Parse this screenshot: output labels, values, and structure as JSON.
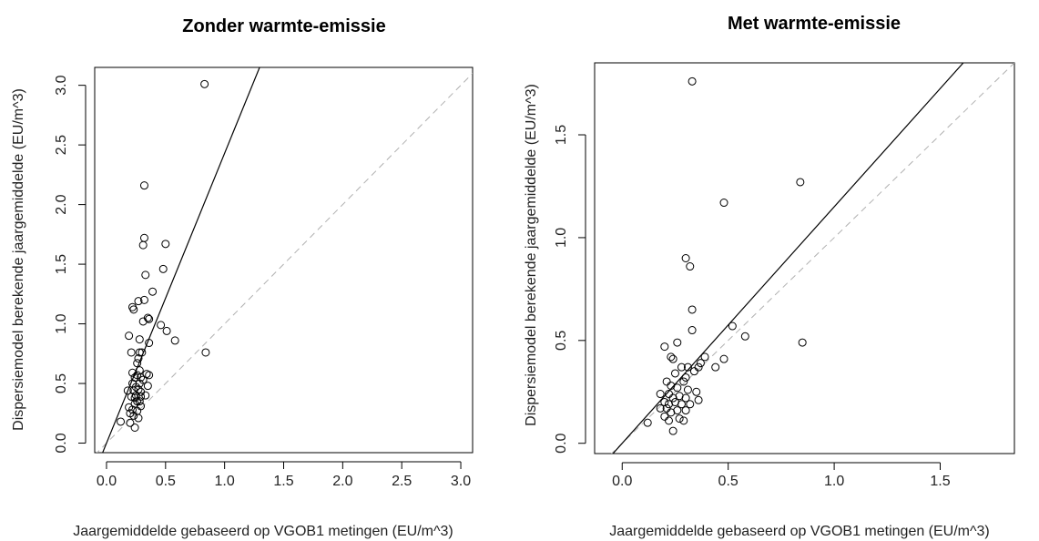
{
  "chart_data": [
    {
      "type": "scatter",
      "title": "Zonder warmte-emissie",
      "xlabel": "Jaargemiddelde gebaseerd op VGOB1 metingen (EU/m^3)",
      "ylabel": "Dispersiemodel berekende jaargemiddelde (EU/m^3)",
      "xlim": [
        -0.1,
        3.1
      ],
      "ylim": [
        -0.08,
        3.15
      ],
      "x_ticks": [
        "0.0",
        "0.5",
        "1.0",
        "1.5",
        "2.0",
        "2.5",
        "3.0"
      ],
      "y_ticks": [
        "0.0",
        "0.5",
        "1.0",
        "1.5",
        "2.0",
        "2.5",
        "3.0"
      ],
      "x_tick_values": [
        0,
        0.5,
        1,
        1.5,
        2,
        2.5,
        3
      ],
      "y_tick_values": [
        0,
        0.5,
        1,
        1.5,
        2,
        2.5,
        3
      ],
      "grid": false,
      "fit_line_slope": 2.43,
      "reference_line": "y = x",
      "points": [
        [
          0.83,
          3.01
        ],
        [
          0.32,
          2.16
        ],
        [
          0.32,
          1.72
        ],
        [
          0.31,
          1.66
        ],
        [
          0.5,
          1.67
        ],
        [
          0.48,
          1.46
        ],
        [
          0.33,
          1.41
        ],
        [
          0.39,
          1.27
        ],
        [
          0.32,
          1.2
        ],
        [
          0.27,
          1.19
        ],
        [
          0.22,
          1.14
        ],
        [
          0.23,
          1.12
        ],
        [
          0.35,
          1.05
        ],
        [
          0.36,
          1.04
        ],
        [
          0.31,
          1.02
        ],
        [
          0.46,
          0.99
        ],
        [
          0.51,
          0.94
        ],
        [
          0.19,
          0.9
        ],
        [
          0.28,
          0.87
        ],
        [
          0.58,
          0.86
        ],
        [
          0.36,
          0.84
        ],
        [
          0.21,
          0.76
        ],
        [
          0.28,
          0.76
        ],
        [
          0.3,
          0.76
        ],
        [
          0.84,
          0.76
        ],
        [
          0.27,
          0.71
        ],
        [
          0.26,
          0.67
        ],
        [
          0.28,
          0.61
        ],
        [
          0.22,
          0.59
        ],
        [
          0.26,
          0.57
        ],
        [
          0.34,
          0.58
        ],
        [
          0.36,
          0.57
        ],
        [
          0.24,
          0.55
        ],
        [
          0.29,
          0.55
        ],
        [
          0.31,
          0.53
        ],
        [
          0.22,
          0.5
        ],
        [
          0.28,
          0.5
        ],
        [
          0.25,
          0.47
        ],
        [
          0.35,
          0.48
        ],
        [
          0.18,
          0.44
        ],
        [
          0.23,
          0.44
        ],
        [
          0.27,
          0.45
        ],
        [
          0.29,
          0.43
        ],
        [
          0.25,
          0.4
        ],
        [
          0.21,
          0.39
        ],
        [
          0.24,
          0.38
        ],
        [
          0.29,
          0.39
        ],
        [
          0.33,
          0.4
        ],
        [
          0.26,
          0.35
        ],
        [
          0.28,
          0.35
        ],
        [
          0.24,
          0.33
        ],
        [
          0.29,
          0.31
        ],
        [
          0.19,
          0.3
        ],
        [
          0.22,
          0.28
        ],
        [
          0.26,
          0.27
        ],
        [
          0.2,
          0.25
        ],
        [
          0.23,
          0.23
        ],
        [
          0.27,
          0.21
        ],
        [
          0.12,
          0.18
        ],
        [
          0.2,
          0.17
        ],
        [
          0.24,
          0.13
        ]
      ]
    },
    {
      "type": "scatter",
      "title": "Met warmte-emissie",
      "xlabel": "Jaargemiddelde gebaseerd op VGOB1 metingen (EU/m^3)",
      "ylabel": "Dispersiemodel berekende jaargemiddelde (EU/m^3)",
      "xlim": [
        -0.13,
        1.85
      ],
      "ylim": [
        -0.05,
        1.85
      ],
      "x_ticks": [
        "0.0",
        "0.5",
        "1.0",
        "1.5"
      ],
      "y_ticks": [
        "0.0",
        "0.5",
        "1.0",
        "1.5"
      ],
      "x_tick_values": [
        0,
        0.5,
        1,
        1.5
      ],
      "y_tick_values": [
        0,
        0.5,
        1,
        1.5
      ],
      "grid": false,
      "fit_line_slope": 1.15,
      "reference_line": "y = x",
      "points": [
        [
          0.33,
          1.76
        ],
        [
          0.84,
          1.27
        ],
        [
          0.48,
          1.17
        ],
        [
          0.3,
          0.9
        ],
        [
          0.32,
          0.86
        ],
        [
          0.33,
          0.65
        ],
        [
          0.52,
          0.57
        ],
        [
          0.33,
          0.55
        ],
        [
          0.58,
          0.52
        ],
        [
          0.26,
          0.49
        ],
        [
          0.85,
          0.49
        ],
        [
          0.2,
          0.47
        ],
        [
          0.23,
          0.42
        ],
        [
          0.24,
          0.41
        ],
        [
          0.39,
          0.42
        ],
        [
          0.48,
          0.41
        ],
        [
          0.37,
          0.39
        ],
        [
          0.28,
          0.37
        ],
        [
          0.31,
          0.37
        ],
        [
          0.36,
          0.37
        ],
        [
          0.44,
          0.37
        ],
        [
          0.34,
          0.35
        ],
        [
          0.25,
          0.34
        ],
        [
          0.3,
          0.32
        ],
        [
          0.21,
          0.3
        ],
        [
          0.29,
          0.3
        ],
        [
          0.23,
          0.28
        ],
        [
          0.26,
          0.27
        ],
        [
          0.31,
          0.26
        ],
        [
          0.35,
          0.25
        ],
        [
          0.18,
          0.24
        ],
        [
          0.22,
          0.24
        ],
        [
          0.27,
          0.23
        ],
        [
          0.24,
          0.22
        ],
        [
          0.3,
          0.22
        ],
        [
          0.36,
          0.21
        ],
        [
          0.2,
          0.2
        ],
        [
          0.25,
          0.2
        ],
        [
          0.22,
          0.19
        ],
        [
          0.28,
          0.19
        ],
        [
          0.32,
          0.19
        ],
        [
          0.18,
          0.17
        ],
        [
          0.21,
          0.17
        ],
        [
          0.26,
          0.16
        ],
        [
          0.3,
          0.16
        ],
        [
          0.23,
          0.15
        ],
        [
          0.2,
          0.13
        ],
        [
          0.27,
          0.12
        ],
        [
          0.29,
          0.11
        ],
        [
          0.22,
          0.11
        ],
        [
          0.12,
          0.1
        ],
        [
          0.24,
          0.06
        ]
      ]
    }
  ]
}
